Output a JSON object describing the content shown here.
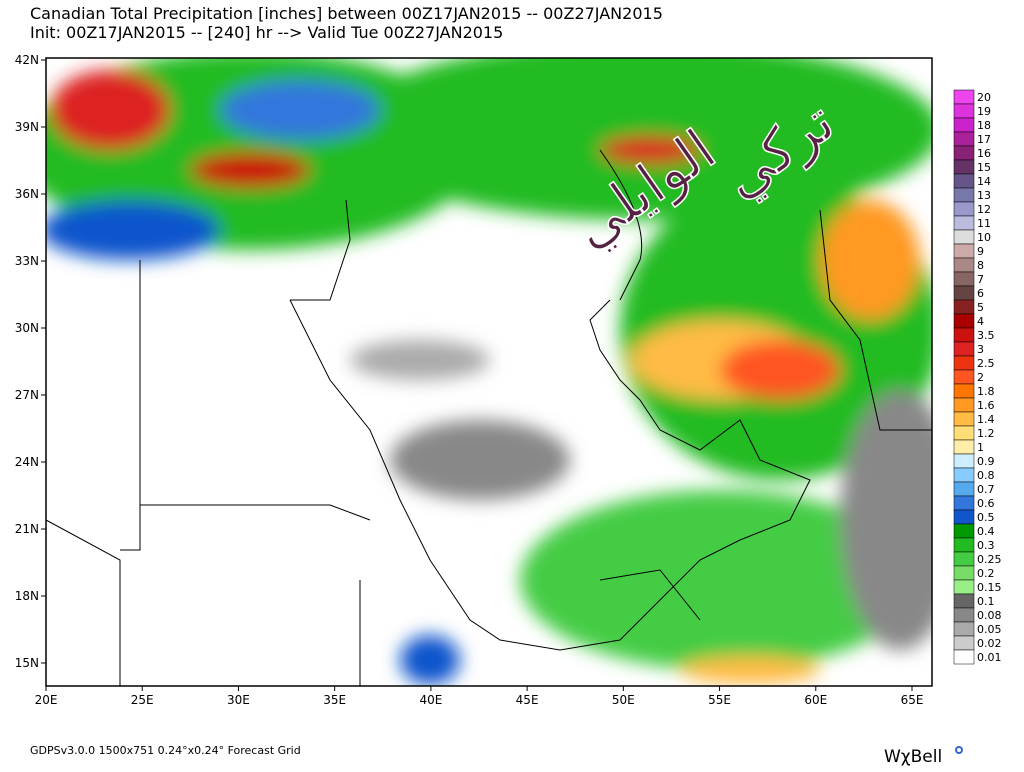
{
  "header": {
    "line1": "Canadian Total Precipitation [inches] between 00Z17JAN2015 -- 00Z27JAN2015",
    "line2": "Init: 00Z17JAN2015 -- [240] hr --> Valid Tue 00Z27JAN2015"
  },
  "map": {
    "lat_labels": [
      "42N",
      "39N",
      "36N",
      "33N",
      "30N",
      "27N",
      "24N",
      "21N",
      "18N",
      "15N"
    ],
    "lon_labels": [
      "20E",
      "25E",
      "30E",
      "35E",
      "40E",
      "45E",
      "50E",
      "55E",
      "60E",
      "65E"
    ]
  },
  "legend": [
    {
      "label": "20",
      "color": "#ee44ee"
    },
    {
      "label": "19",
      "color": "#dd33dd"
    },
    {
      "label": "18",
      "color": "#cc22cc"
    },
    {
      "label": "17",
      "color": "#aa2299"
    },
    {
      "label": "16",
      "color": "#882277"
    },
    {
      "label": "15",
      "color": "#663366"
    },
    {
      "label": "14",
      "color": "#665588"
    },
    {
      "label": "13",
      "color": "#7777aa"
    },
    {
      "label": "12",
      "color": "#9999cc"
    },
    {
      "label": "11",
      "color": "#bbbbdd"
    },
    {
      "label": "10",
      "color": "#dddddd"
    },
    {
      "label": "9",
      "color": "#ccaaaa"
    },
    {
      "label": "8",
      "color": "#aa8888"
    },
    {
      "label": "7",
      "color": "#886666"
    },
    {
      "label": "6",
      "color": "#664444"
    },
    {
      "label": "5",
      "color": "#882222"
    },
    {
      "label": "4",
      "color": "#aa0000"
    },
    {
      "label": "3.5",
      "color": "#cc1111"
    },
    {
      "label": "3",
      "color": "#dd2222"
    },
    {
      "label": "2.5",
      "color": "#ee3311"
    },
    {
      "label": "2",
      "color": "#ff5522"
    },
    {
      "label": "1.8",
      "color": "#ff7700"
    },
    {
      "label": "1.6",
      "color": "#ff9922"
    },
    {
      "label": "1.4",
      "color": "#ffbb44"
    },
    {
      "label": "1.2",
      "color": "#ffdd77"
    },
    {
      "label": "1",
      "color": "#ffeeaa"
    },
    {
      "label": "0.9",
      "color": "#cceeff"
    },
    {
      "label": "0.8",
      "color": "#88ccff"
    },
    {
      "label": "0.7",
      "color": "#55aaee"
    },
    {
      "label": "0.6",
      "color": "#3377dd"
    },
    {
      "label": "0.5",
      "color": "#1155cc"
    },
    {
      "label": "0.4",
      "color": "#009900"
    },
    {
      "label": "0.3",
      "color": "#22bb22"
    },
    {
      "label": "0.25",
      "color": "#44cc44"
    },
    {
      "label": "0.2",
      "color": "#77dd66"
    },
    {
      "label": "0.15",
      "color": "#99ee88"
    },
    {
      "label": "0.1",
      "color": "#666666"
    },
    {
      "label": "0.08",
      "color": "#888888"
    },
    {
      "label": "0.05",
      "color": "#aaaaaa"
    },
    {
      "label": "0.02",
      "color": "#cccccc"
    },
    {
      "label": "0.01",
      "color": "#ffffff"
    }
  ],
  "footer": {
    "left": "GDPSv3.0.0 1500x751 0.24°x0.24° Forecast Grid",
    "logo": "WχBell"
  },
  "watermark": [
    "تركي",
    "الوايلي"
  ]
}
